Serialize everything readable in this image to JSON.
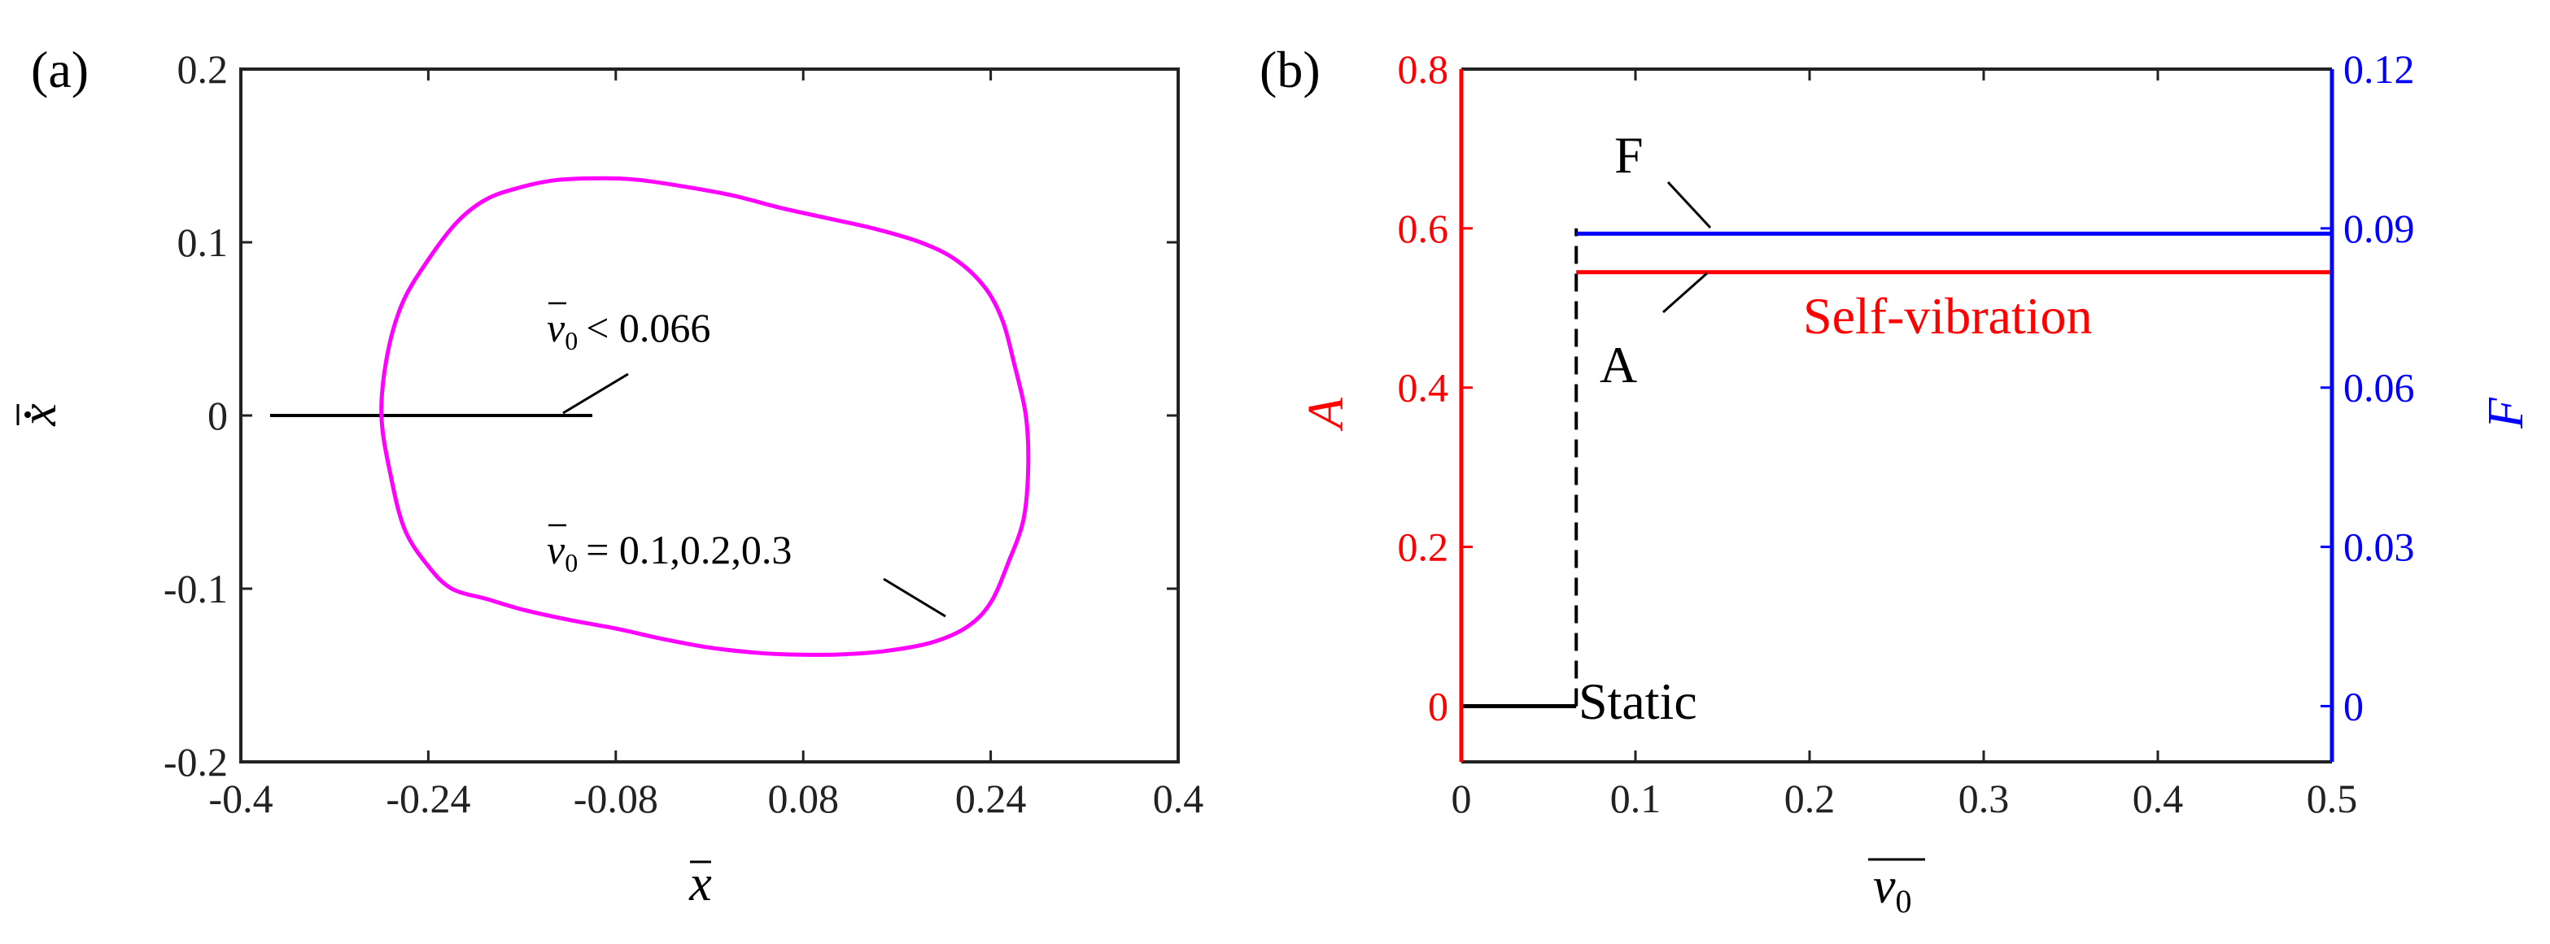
{
  "chart_data": [
    {
      "panel_label": "(a)",
      "type": "line",
      "xlabel": "x",
      "ylabel": "x",
      "xlim": [
        -0.4,
        0.4
      ],
      "ylim": [
        -0.2,
        0.2
      ],
      "xticks": [
        -0.4,
        -0.24,
        -0.08,
        0.08,
        0.24,
        0.4
      ],
      "xtick_labels": [
        "-0.4",
        "-0.24",
        "-0.08",
        "0.08",
        "0.24",
        "0.4"
      ],
      "yticks": [
        -0.2,
        -0.1,
        0,
        0.1,
        0.2
      ],
      "ytick_labels": [
        "-0.2",
        "-0.1",
        "0",
        "0.1",
        "0.2"
      ],
      "grid": false,
      "colors": {
        "loop": "#ff00ff",
        "line": "#000000"
      },
      "series": [
        {
          "color": "#000000",
          "x": [
            -0.375,
            -0.1
          ],
          "y": [
            0,
            0
          ]
        },
        {
          "color": "#ff00ff",
          "closed": true,
          "x": [
            -0.28,
            -0.275,
            -0.262,
            -0.24,
            -0.215,
            -0.19,
            -0.16,
            -0.13,
            -0.09,
            -0.06,
            -0.02,
            0.02,
            0.06,
            0.1,
            0.14,
            0.18,
            0.21,
            0.235,
            0.25,
            0.26,
            0.27,
            0.272,
            0.268,
            0.255,
            0.24,
            0.22,
            0.19,
            0.15,
            0.11,
            0.07,
            0.04,
            0.0,
            -0.04,
            -0.08,
            -0.12,
            -0.16,
            -0.19,
            -0.22,
            -0.24,
            -0.26,
            -0.272,
            -0.28
          ],
          "y": [
            0,
            0.035,
            0.065,
            0.09,
            0.112,
            0.125,
            0.132,
            0.136,
            0.137,
            0.136,
            0.132,
            0.127,
            0.12,
            0.114,
            0.108,
            0.1,
            0.09,
            0.074,
            0.055,
            0.03,
            0.0,
            -0.03,
            -0.06,
            -0.085,
            -0.108,
            -0.122,
            -0.131,
            -0.136,
            -0.138,
            -0.138,
            -0.137,
            -0.134,
            -0.129,
            -0.123,
            -0.118,
            -0.112,
            -0.106,
            -0.1,
            -0.087,
            -0.066,
            -0.035,
            0
          ]
        }
      ],
      "annotations": [
        {
          "var": "v",
          "sub": "0",
          "rel": "< 0.066"
        },
        {
          "var": "v",
          "sub": "0",
          "rel": "= 0.1,0.2,0.3"
        }
      ]
    },
    {
      "panel_label": "(b)",
      "type": "line",
      "xlabel": "v",
      "xlabel_sub": "0",
      "ylabel_left": "A",
      "ylabel_right": "F",
      "xlim": [
        0,
        0.5
      ],
      "ylim_left": [
        -0.07,
        0.8
      ],
      "ylim_right": [
        -0.0105,
        0.12
      ],
      "xticks": [
        0,
        0.1,
        0.2,
        0.3,
        0.4,
        0.5
      ],
      "xtick_labels": [
        "0",
        "0.1",
        "0.2",
        "0.3",
        "0.4",
        "0.5"
      ],
      "yticks_left": [
        0,
        0.2,
        0.4,
        0.6,
        0.8
      ],
      "ytick_labels_left": [
        "0",
        "0.2",
        "0.4",
        "0.6",
        "0.8"
      ],
      "yticks_right": [
        0,
        0.03,
        0.06,
        0.09,
        0.12
      ],
      "ytick_labels_right": [
        "0",
        "0.03",
        "0.06",
        "0.09",
        "0.12"
      ],
      "grid": false,
      "colors": {
        "left_axis": "#ff0000",
        "right_axis": "#0000ff",
        "static": "#000000"
      },
      "series": [
        {
          "color": "#000000",
          "axis": "left",
          "x": [
            0,
            0.066
          ],
          "y": [
            0,
            0
          ]
        },
        {
          "color": "#000000",
          "axis": "left",
          "dashed": true,
          "x": [
            0.066,
            0.066
          ],
          "y": [
            0,
            0.6
          ]
        },
        {
          "name": "F",
          "color": "#0000ff",
          "axis": "right",
          "x": [
            0.066,
            0.5
          ],
          "y": [
            0.089,
            0.089
          ]
        },
        {
          "name": "A",
          "color": "#ff0000",
          "axis": "left",
          "x": [
            0.066,
            0.5
          ],
          "y": [
            0.545,
            0.545
          ]
        }
      ],
      "annotations": [
        {
          "text": "F"
        },
        {
          "text": "A"
        },
        {
          "text": "Self-vibration"
        },
        {
          "text": "Static"
        }
      ]
    }
  ]
}
